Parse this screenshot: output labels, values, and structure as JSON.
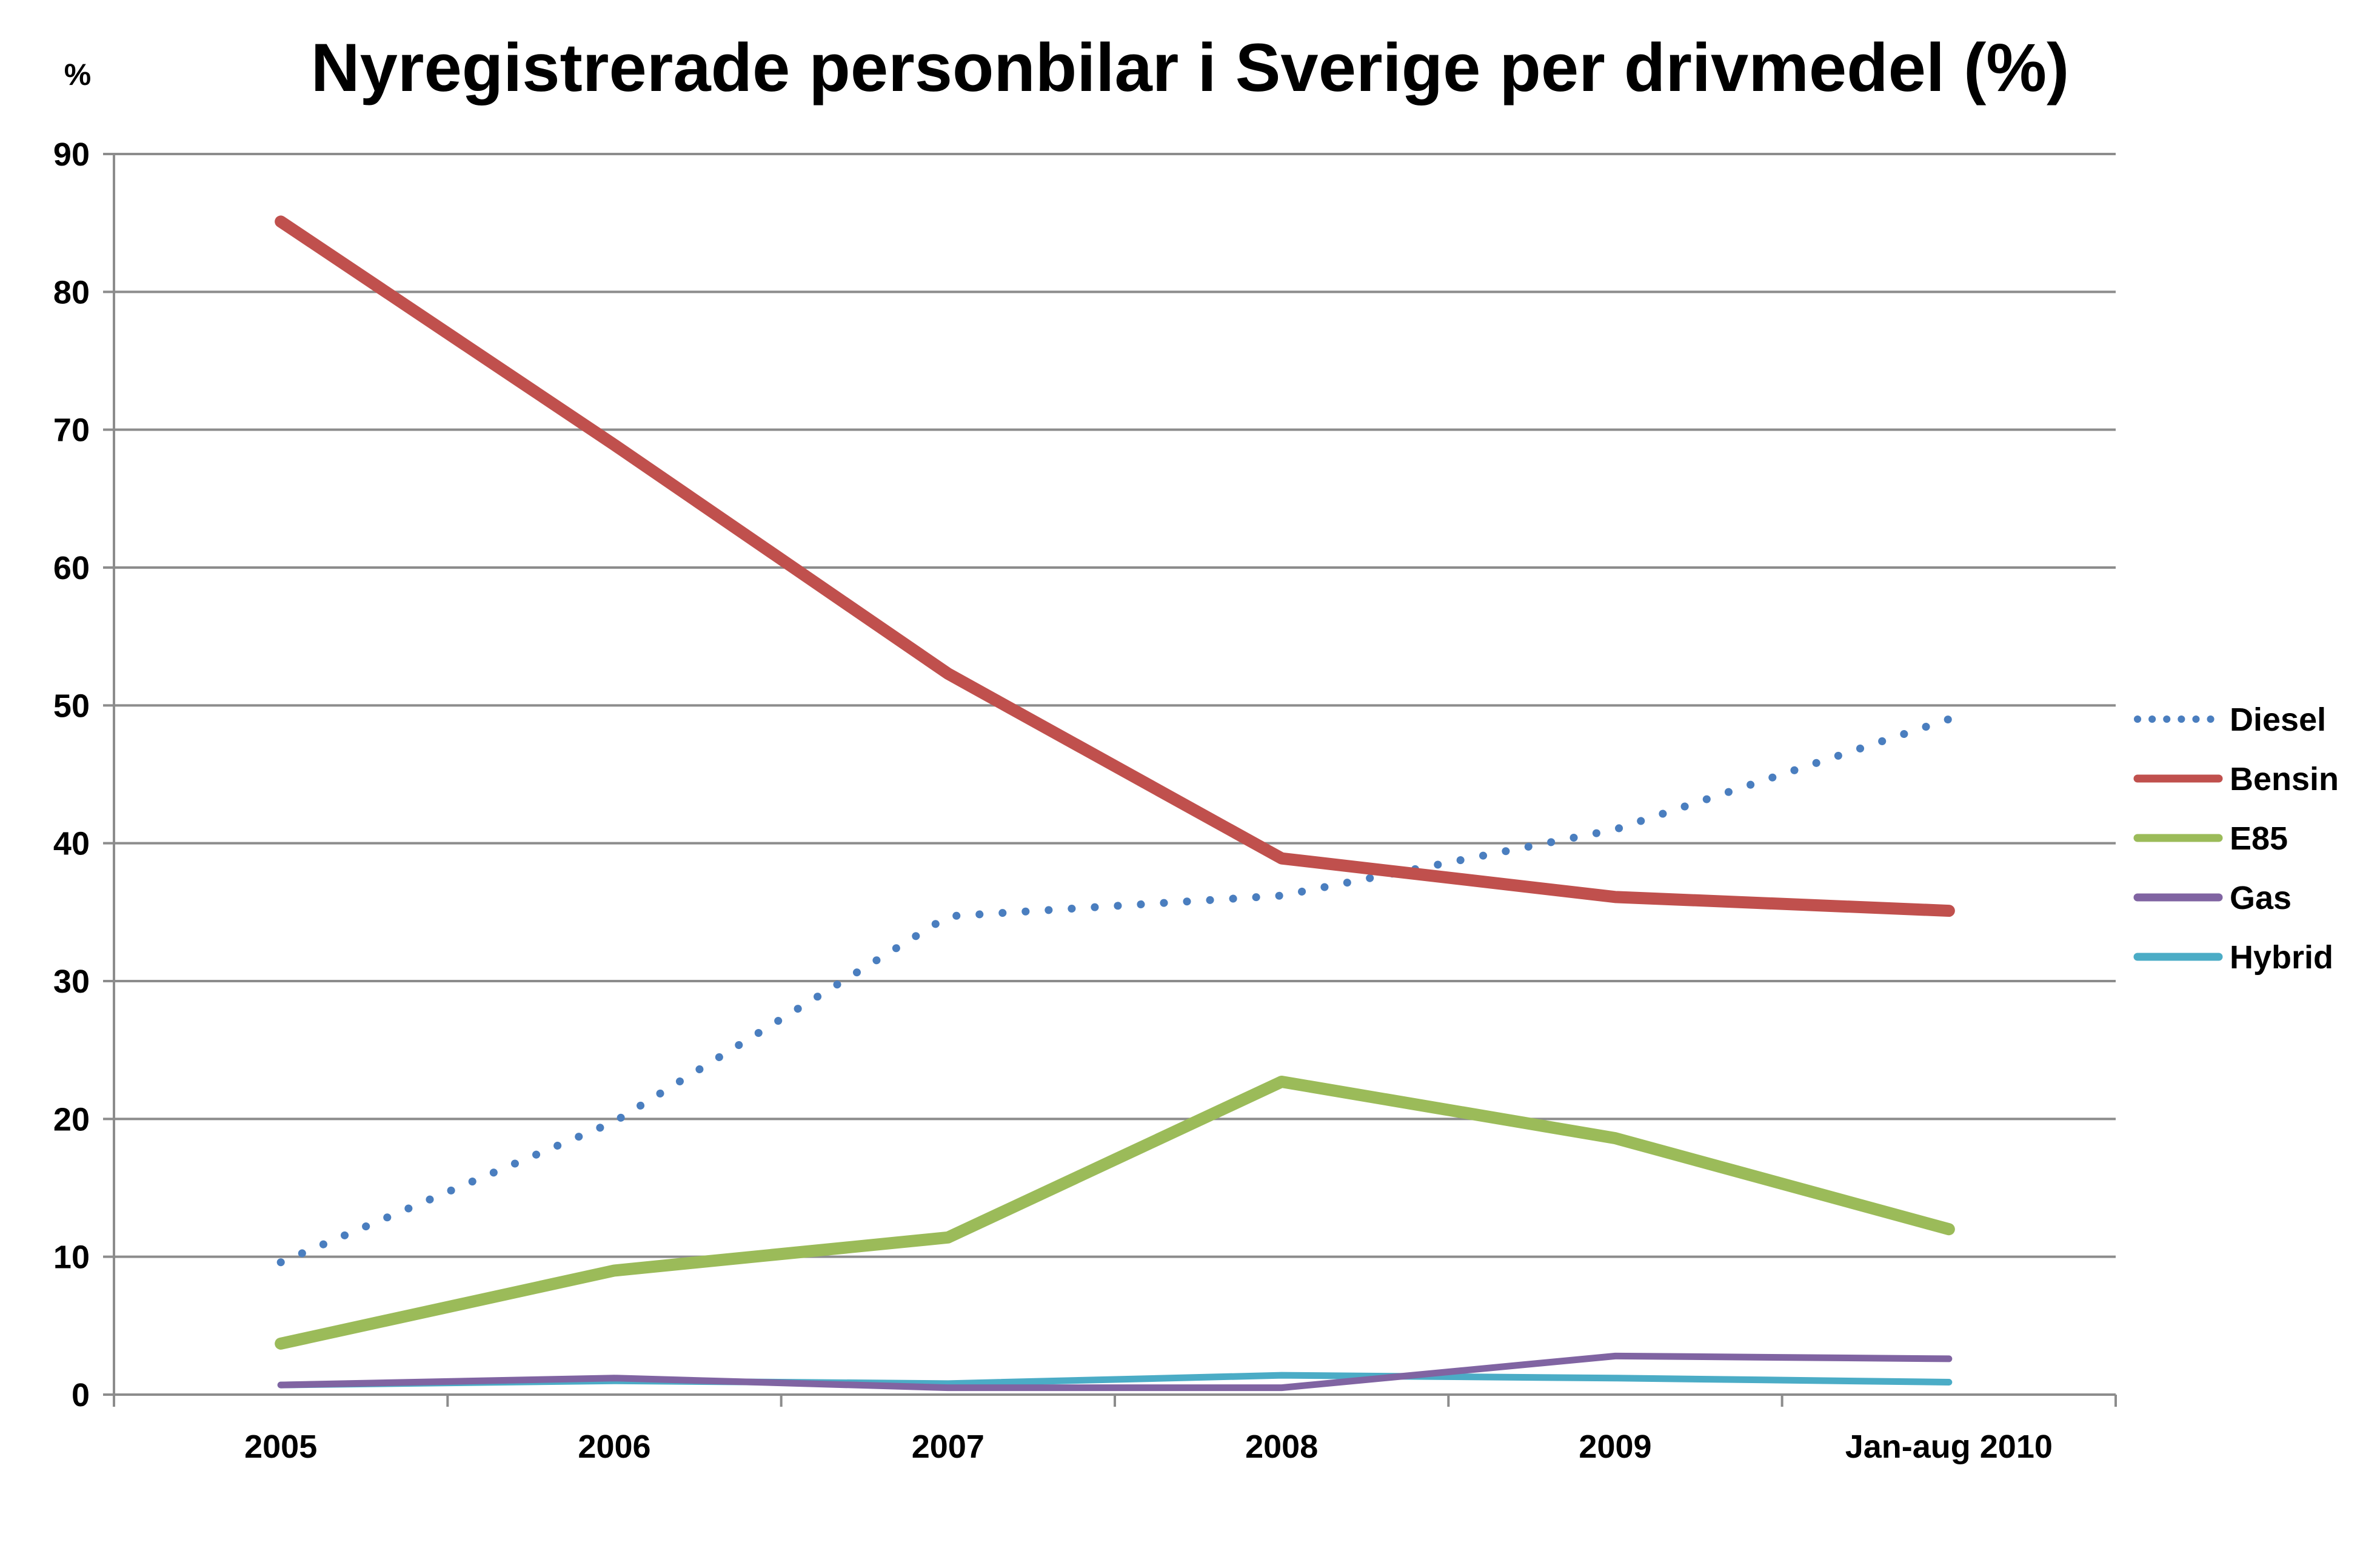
{
  "chart_data": {
    "type": "line",
    "title": "Nyregistrerade personbilar i Sverige per drivmedel (%)",
    "unit_label": "%",
    "xlabel": "",
    "ylabel": "",
    "categories": [
      "2005",
      "2006",
      "2007",
      "2008",
      "2009",
      "Jan-aug 2010"
    ],
    "ylim": [
      0,
      90
    ],
    "yticks": [
      0,
      10,
      20,
      30,
      40,
      50,
      60,
      70,
      80,
      90
    ],
    "grid": "horizontal",
    "legend_position": "right",
    "series": [
      {
        "name": "Diesel",
        "color": "#4a7ebf",
        "style": "dotted",
        "values": [
          9.6,
          19.8,
          34.7,
          36.2,
          41.0,
          49.0
        ]
      },
      {
        "name": "Bensin",
        "color": "#c0504d",
        "style": "solid",
        "values": [
          85.1,
          68.9,
          52.3,
          38.9,
          36.1,
          35.1
        ]
      },
      {
        "name": "E85",
        "color": "#9bbb59",
        "style": "solid",
        "values": [
          3.7,
          9.0,
          11.4,
          22.7,
          18.6,
          12.0
        ]
      },
      {
        "name": "Gas",
        "color": "#8064a2",
        "style": "solid",
        "values": [
          0.7,
          1.2,
          0.5,
          0.5,
          2.8,
          2.6
        ]
      },
      {
        "name": "Hybrid",
        "color": "#4bacc6",
        "style": "solid",
        "values": [
          0.7,
          1.0,
          0.8,
          1.4,
          1.2,
          0.9
        ]
      }
    ]
  }
}
